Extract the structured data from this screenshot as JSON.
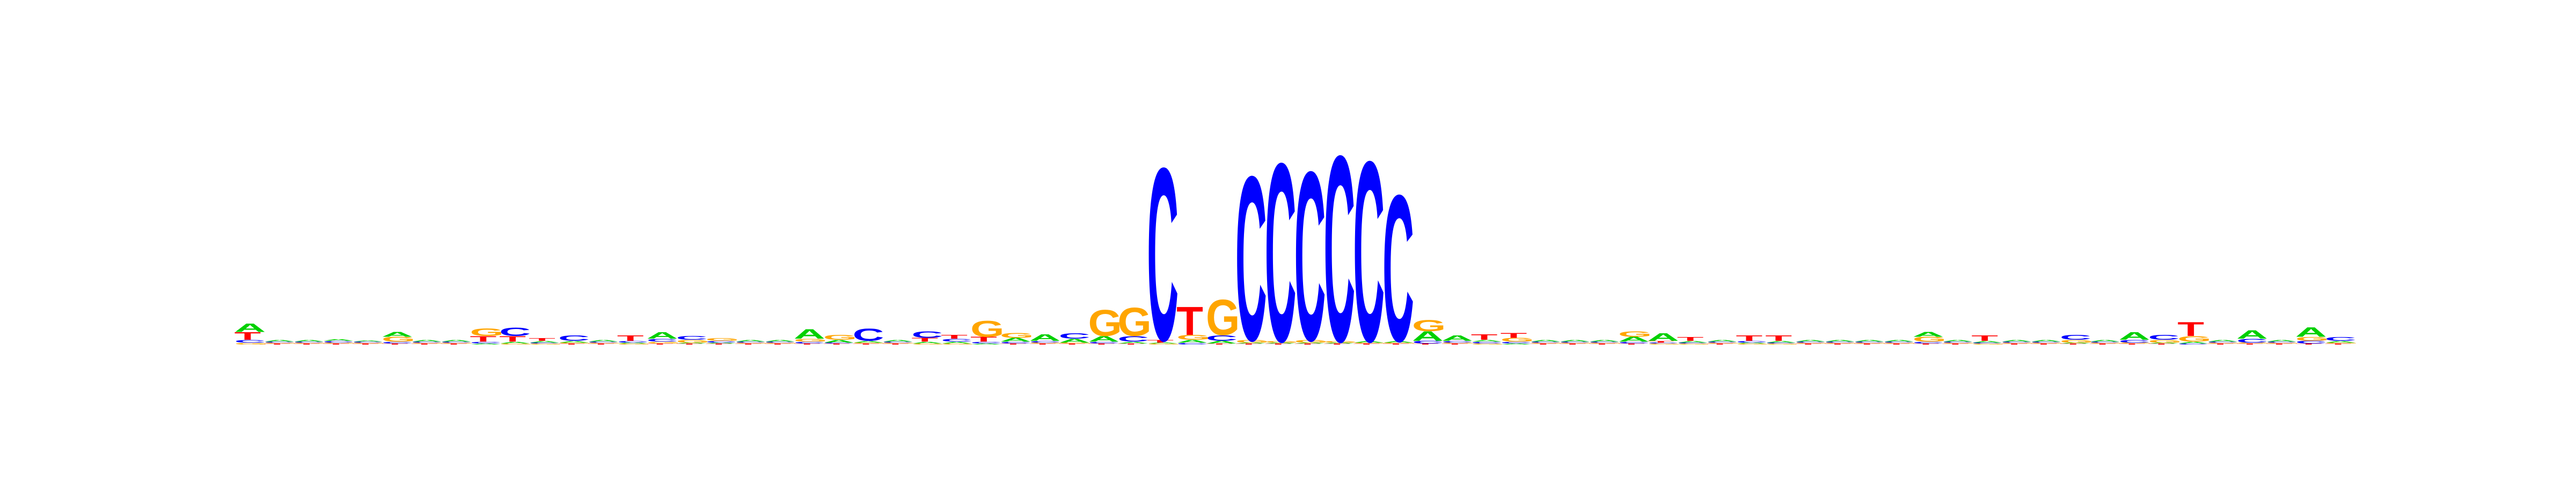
{
  "chart_data": {
    "type": "sequence-logo",
    "colors": {
      "A": "#00d000",
      "C": "#0000ff",
      "G": "#ffa500",
      "T": "#ff0000"
    },
    "ylim": [
      0,
      2
    ],
    "positions": [
      {
        "T": 0.08,
        "A": 0.09,
        "C": 0.03,
        "G": 0.02
      },
      {
        "A": 0.02,
        "C": 0.01,
        "G": 0.01,
        "T": 0.01
      },
      {
        "A": 0.02,
        "C": 0.01,
        "G": 0.01,
        "T": 0.01
      },
      {
        "A": 0.02,
        "C": 0.02,
        "G": 0.01,
        "T": 0.01
      },
      {
        "A": 0.01,
        "C": 0.01,
        "G": 0.01,
        "T": 0.01
      },
      {
        "G": 0.05,
        "A": 0.05,
        "C": 0.02,
        "T": 0.01
      },
      {
        "A": 0.02,
        "C": 0.01,
        "G": 0.01,
        "T": 0.01
      },
      {
        "A": 0.02,
        "C": 0.01,
        "G": 0.01,
        "T": 0.01
      },
      {
        "G": 0.08,
        "T": 0.06,
        "C": 0.02,
        "A": 0.01
      },
      {
        "C": 0.09,
        "T": 0.06,
        "A": 0.02,
        "G": 0.01
      },
      {
        "T": 0.03,
        "A": 0.02,
        "C": 0.01,
        "G": 0.01
      },
      {
        "C": 0.06,
        "A": 0.02,
        "T": 0.01,
        "G": 0.01
      },
      {
        "A": 0.02,
        "C": 0.01,
        "G": 0.01,
        "T": 0.01
      },
      {
        "T": 0.06,
        "C": 0.02,
        "A": 0.01,
        "G": 0.01
      },
      {
        "A": 0.07,
        "C": 0.03,
        "G": 0.02,
        "T": 0.01
      },
      {
        "C": 0.04,
        "G": 0.03,
        "A": 0.01,
        "T": 0.01
      },
      {
        "G": 0.03,
        "C": 0.02,
        "A": 0.01,
        "T": 0.01
      },
      {
        "A": 0.02,
        "C": 0.01,
        "G": 0.01,
        "T": 0.01
      },
      {
        "A": 0.02,
        "C": 0.01,
        "G": 0.01,
        "T": 0.01
      },
      {
        "A": 0.1,
        "G": 0.03,
        "C": 0.02,
        "T": 0.01
      },
      {
        "G": 0.05,
        "A": 0.03,
        "C": 0.01,
        "T": 0.01
      },
      {
        "C": 0.13,
        "A": 0.02,
        "G": 0.01,
        "T": 0.01
      },
      {
        "A": 0.02,
        "C": 0.01,
        "G": 0.01,
        "T": 0.01
      },
      {
        "C": 0.07,
        "T": 0.04,
        "A": 0.02,
        "G": 0.01
      },
      {
        "T": 0.04,
        "C": 0.03,
        "A": 0.02,
        "G": 0.01
      },
      {
        "G": 0.17,
        "T": 0.05,
        "C": 0.02,
        "A": 0.01
      },
      {
        "G": 0.05,
        "A": 0.04,
        "C": 0.02,
        "T": 0.01
      },
      {
        "A": 0.07,
        "C": 0.02,
        "G": 0.01,
        "T": 0.01
      },
      {
        "C": 0.06,
        "A": 0.04,
        "G": 0.01,
        "T": 0.01
      },
      {
        "G": 0.28,
        "A": 0.06,
        "C": 0.02,
        "T": 0.01
      },
      {
        "G": 0.3,
        "C": 0.06,
        "A": 0.02,
        "T": 0.01
      },
      {
        "C": 1.84,
        "T": 0.03,
        "A": 0.01,
        "G": 0.01
      },
      {
        "T": 0.3,
        "G": 0.05,
        "A": 0.03,
        "C": 0.02
      },
      {
        "G": 0.38,
        "C": 0.06,
        "A": 0.03,
        "T": 0.01
      },
      {
        "C": 1.75,
        "G": 0.03,
        "A": 0.01,
        "T": 0.01
      },
      {
        "C": 1.9,
        "G": 0.02,
        "A": 0.01,
        "T": 0.01
      },
      {
        "C": 1.8,
        "G": 0.03,
        "A": 0.01,
        "T": 0.01
      },
      {
        "C": 1.98,
        "G": 0.02,
        "A": 0.01,
        "T": 0.01
      },
      {
        "C": 1.92,
        "A": 0.02,
        "G": 0.01,
        "T": 0.01
      },
      {
        "C": 1.56,
        "A": 0.02,
        "G": 0.01,
        "T": 0.01
      },
      {
        "G": 0.12,
        "A": 0.1,
        "C": 0.03,
        "T": 0.01
      },
      {
        "A": 0.06,
        "C": 0.02,
        "G": 0.01,
        "T": 0.01
      },
      {
        "T": 0.06,
        "A": 0.02,
        "C": 0.02,
        "G": 0.01
      },
      {
        "T": 0.05,
        "G": 0.04,
        "C": 0.02,
        "A": 0.01
      },
      {
        "A": 0.02,
        "C": 0.01,
        "G": 0.01,
        "T": 0.01
      },
      {
        "A": 0.02,
        "C": 0.01,
        "G": 0.01,
        "T": 0.01
      },
      {
        "A": 0.02,
        "C": 0.01,
        "G": 0.01,
        "T": 0.01
      },
      {
        "G": 0.06,
        "A": 0.05,
        "C": 0.02,
        "T": 0.01
      },
      {
        "A": 0.08,
        "T": 0.02,
        "C": 0.01,
        "G": 0.01
      },
      {
        "T": 0.04,
        "A": 0.02,
        "C": 0.01,
        "G": 0.01
      },
      {
        "A": 0.02,
        "C": 0.01,
        "G": 0.01,
        "T": 0.01
      },
      {
        "T": 0.06,
        "C": 0.02,
        "A": 0.01,
        "G": 0.01
      },
      {
        "T": 0.06,
        "A": 0.02,
        "C": 0.01,
        "G": 0.01
      },
      {
        "A": 0.02,
        "C": 0.01,
        "G": 0.01,
        "T": 0.01
      },
      {
        "A": 0.02,
        "C": 0.01,
        "G": 0.01,
        "T": 0.01
      },
      {
        "A": 0.02,
        "C": 0.01,
        "G": 0.01,
        "T": 0.01
      },
      {
        "A": 0.02,
        "C": 0.01,
        "G": 0.01,
        "T": 0.01
      },
      {
        "G": 0.05,
        "A": 0.05,
        "C": 0.02,
        "T": 0.01
      },
      {
        "A": 0.02,
        "C": 0.01,
        "G": 0.01,
        "T": 0.01
      },
      {
        "T": 0.06,
        "A": 0.02,
        "C": 0.01,
        "G": 0.01
      },
      {
        "A": 0.02,
        "C": 0.01,
        "G": 0.01,
        "T": 0.01
      },
      {
        "A": 0.02,
        "C": 0.01,
        "G": 0.01,
        "T": 0.01
      },
      {
        "C": 0.05,
        "G": 0.03,
        "A": 0.01,
        "T": 0.01
      },
      {
        "A": 0.02,
        "C": 0.01,
        "G": 0.01,
        "T": 0.01
      },
      {
        "A": 0.08,
        "C": 0.03,
        "G": 0.01,
        "T": 0.01
      },
      {
        "C": 0.05,
        "G": 0.03,
        "A": 0.01,
        "T": 0.01
      },
      {
        "T": 0.15,
        "G": 0.06,
        "A": 0.02,
        "C": 0.01
      },
      {
        "A": 0.02,
        "C": 0.01,
        "G": 0.01,
        "T": 0.01
      },
      {
        "A": 0.09,
        "C": 0.04,
        "G": 0.01,
        "T": 0.01
      },
      {
        "A": 0.02,
        "C": 0.01,
        "G": 0.01,
        "T": 0.01
      },
      {
        "A": 0.1,
        "G": 0.04,
        "C": 0.03,
        "T": 0.01
      },
      {
        "C": 0.04,
        "A": 0.02,
        "G": 0.01,
        "T": 0.01
      }
    ]
  }
}
